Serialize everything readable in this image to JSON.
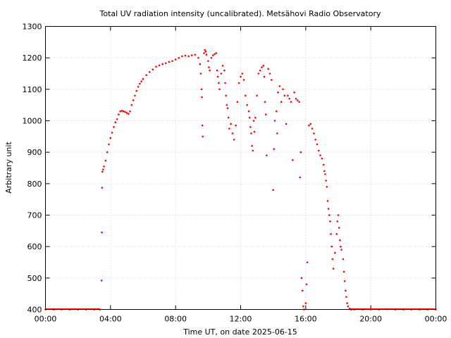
{
  "chart_data": {
    "type": "scatter",
    "title": "Total UV radiation intensity (uncalibrated). Metsähovi Radio Observatory",
    "xlabel": "Time UT, on date 2025-06-15",
    "ylabel": "Arbitrary unit",
    "xlim": [
      0,
      24
    ],
    "ylim": [
      400,
      1300
    ],
    "x_ticks": [
      {
        "value": 0,
        "label": "00:00"
      },
      {
        "value": 4,
        "label": "04:00"
      },
      {
        "value": 8,
        "label": "08:00"
      },
      {
        "value": 12,
        "label": "12:00"
      },
      {
        "value": 16,
        "label": "16:00"
      },
      {
        "value": 20,
        "label": "20:00"
      },
      {
        "value": 24,
        "label": "00:00"
      }
    ],
    "y_ticks": [
      400,
      500,
      600,
      700,
      800,
      900,
      1000,
      1100,
      1200,
      1300
    ],
    "grid": true,
    "marker_color": "#ff0000",
    "series": [
      {
        "points": [
          [
            0.0,
            400
          ],
          [
            0.5,
            400
          ],
          [
            1.0,
            400
          ],
          [
            1.5,
            400
          ],
          [
            2.0,
            400
          ],
          [
            2.5,
            400
          ],
          [
            3.0,
            400
          ],
          [
            3.35,
            400
          ],
          [
            3.45,
            492
          ],
          [
            3.47,
            645
          ],
          [
            3.48,
            787
          ],
          [
            3.5,
            838
          ],
          [
            3.55,
            845
          ],
          [
            3.6,
            855
          ],
          [
            3.7,
            873
          ],
          [
            3.8,
            900
          ],
          [
            3.9,
            925
          ],
          [
            4.0,
            945
          ],
          [
            4.1,
            962
          ],
          [
            4.2,
            980
          ],
          [
            4.3,
            995
          ],
          [
            4.4,
            1005
          ],
          [
            4.5,
            1020
          ],
          [
            4.6,
            1030
          ],
          [
            4.7,
            1032
          ],
          [
            4.8,
            1030
          ],
          [
            4.9,
            1028
          ],
          [
            5.0,
            1025
          ],
          [
            5.1,
            1022
          ],
          [
            5.2,
            1030
          ],
          [
            5.3,
            1050
          ],
          [
            5.4,
            1065
          ],
          [
            5.5,
            1080
          ],
          [
            5.6,
            1095
          ],
          [
            5.7,
            1108
          ],
          [
            5.8,
            1118
          ],
          [
            5.9,
            1125
          ],
          [
            6.0,
            1133
          ],
          [
            6.2,
            1145
          ],
          [
            6.4,
            1155
          ],
          [
            6.6,
            1163
          ],
          [
            6.8,
            1172
          ],
          [
            7.0,
            1176
          ],
          [
            7.2,
            1180
          ],
          [
            7.4,
            1183
          ],
          [
            7.6,
            1187
          ],
          [
            7.8,
            1190
          ],
          [
            8.0,
            1195
          ],
          [
            8.2,
            1200
          ],
          [
            8.4,
            1205
          ],
          [
            8.6,
            1207
          ],
          [
            8.8,
            1205
          ],
          [
            9.0,
            1208
          ],
          [
            9.2,
            1210
          ],
          [
            9.4,
            1200
          ],
          [
            9.5,
            1180
          ],
          [
            9.55,
            1150
          ],
          [
            9.6,
            1100
          ],
          [
            9.62,
            1075
          ],
          [
            9.65,
            985
          ],
          [
            9.67,
            950
          ],
          [
            9.75,
            1215
          ],
          [
            9.8,
            1225
          ],
          [
            9.85,
            1220
          ],
          [
            9.9,
            1210
          ],
          [
            10.0,
            1190
          ],
          [
            10.05,
            1170
          ],
          [
            10.1,
            1160
          ],
          [
            10.2,
            1200
          ],
          [
            10.3,
            1208
          ],
          [
            10.4,
            1212
          ],
          [
            10.5,
            1215
          ],
          [
            10.55,
            1160
          ],
          [
            10.6,
            1140
          ],
          [
            10.65,
            1120
          ],
          [
            10.7,
            1100
          ],
          [
            10.8,
            1150
          ],
          [
            10.9,
            1175
          ],
          [
            11.0,
            1160
          ],
          [
            11.05,
            1120
          ],
          [
            11.1,
            1080
          ],
          [
            11.15,
            1050
          ],
          [
            11.2,
            1040
          ],
          [
            11.25,
            1010
          ],
          [
            11.3,
            975
          ],
          [
            11.4,
            990
          ],
          [
            11.5,
            960
          ],
          [
            11.6,
            940
          ],
          [
            11.7,
            985
          ],
          [
            11.8,
            1060
          ],
          [
            11.9,
            1120
          ],
          [
            12.0,
            1140
          ],
          [
            12.1,
            1150
          ],
          [
            12.2,
            1130
          ],
          [
            12.3,
            1080
          ],
          [
            12.4,
            1050
          ],
          [
            12.5,
            1030
          ],
          [
            12.55,
            1010
          ],
          [
            12.6,
            980
          ],
          [
            12.65,
            960
          ],
          [
            12.7,
            920
          ],
          [
            12.75,
            905
          ],
          [
            12.8,
            1000
          ],
          [
            12.85,
            965
          ],
          [
            12.9,
            1010
          ],
          [
            13.0,
            1080
          ],
          [
            13.1,
            1150
          ],
          [
            13.2,
            1160
          ],
          [
            13.3,
            1170
          ],
          [
            13.4,
            1175
          ],
          [
            13.45,
            1140
          ],
          [
            13.5,
            1060
          ],
          [
            13.55,
            1020
          ],
          [
            13.6,
            890
          ],
          [
            13.7,
            1165
          ],
          [
            13.8,
            1150
          ],
          [
            13.9,
            1130
          ],
          [
            14.0,
            780
          ],
          [
            14.05,
            910
          ],
          [
            14.1,
            1000
          ],
          [
            14.2,
            1030
          ],
          [
            14.25,
            960
          ],
          [
            14.3,
            1090
          ],
          [
            14.4,
            1110
          ],
          [
            14.5,
            1060
          ],
          [
            14.6,
            1100
          ],
          [
            14.7,
            1080
          ],
          [
            14.8,
            990
          ],
          [
            14.9,
            1080
          ],
          [
            15.0,
            1070
          ],
          [
            15.1,
            1060
          ],
          [
            15.2,
            875
          ],
          [
            15.3,
            1090
          ],
          [
            15.4,
            1070
          ],
          [
            15.5,
            1065
          ],
          [
            15.6,
            1060
          ],
          [
            15.65,
            820
          ],
          [
            15.7,
            900
          ],
          [
            15.75,
            500
          ],
          [
            15.8,
            460
          ],
          [
            15.85,
            410
          ],
          [
            15.9,
            400
          ],
          [
            16.0,
            420
          ],
          [
            16.05,
            480
          ],
          [
            16.1,
            550
          ],
          [
            16.2,
            985
          ],
          [
            16.3,
            990
          ],
          [
            16.4,
            975
          ],
          [
            16.5,
            960
          ],
          [
            16.6,
            940
          ],
          [
            16.7,
            925
          ],
          [
            16.8,
            905
          ],
          [
            16.9,
            890
          ],
          [
            17.0,
            880
          ],
          [
            17.1,
            860
          ],
          [
            17.15,
            840
          ],
          [
            17.2,
            830
          ],
          [
            17.25,
            810
          ],
          [
            17.3,
            790
          ],
          [
            17.35,
            745
          ],
          [
            17.4,
            720
          ],
          [
            17.45,
            700
          ],
          [
            17.5,
            680
          ],
          [
            17.55,
            640
          ],
          [
            17.6,
            600
          ],
          [
            17.65,
            560
          ],
          [
            17.7,
            530
          ],
          [
            17.8,
            580
          ],
          [
            17.9,
            640
          ],
          [
            17.95,
            680
          ],
          [
            18.0,
            700
          ],
          [
            18.05,
            660
          ],
          [
            18.1,
            620
          ],
          [
            18.15,
            600
          ],
          [
            18.2,
            590
          ],
          [
            18.3,
            560
          ],
          [
            18.35,
            520
          ],
          [
            18.4,
            490
          ],
          [
            18.45,
            460
          ],
          [
            18.5,
            440
          ],
          [
            18.55,
            420
          ],
          [
            18.6,
            410
          ],
          [
            18.7,
            403
          ],
          [
            18.8,
            400
          ],
          [
            19.0,
            400
          ],
          [
            19.5,
            400
          ],
          [
            20.0,
            400
          ],
          [
            20.5,
            400
          ],
          [
            21.0,
            401
          ],
          [
            21.5,
            400
          ],
          [
            22.0,
            400
          ],
          [
            22.5,
            400
          ],
          [
            23.0,
            400
          ],
          [
            23.5,
            400
          ],
          [
            24.0,
            400
          ]
        ]
      }
    ]
  }
}
